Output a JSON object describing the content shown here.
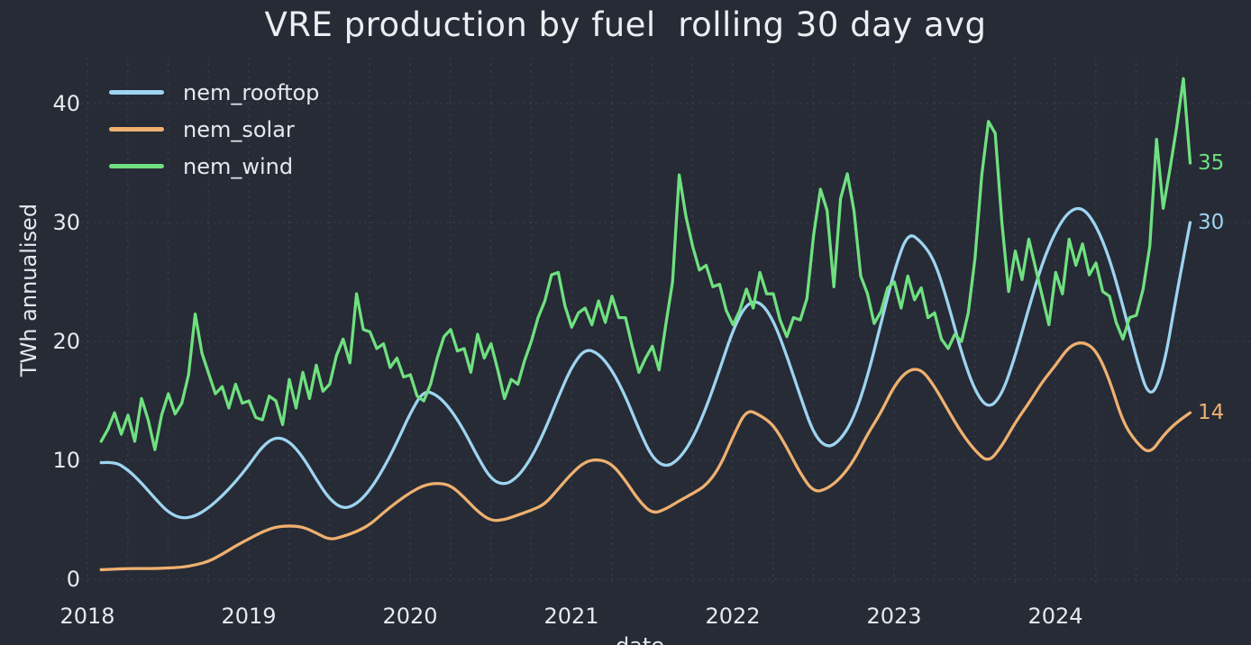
{
  "title": "VRE production by fuel  rolling 30 day avg",
  "colors": {
    "background": "#262b36",
    "grid": "#4b5160",
    "text": "#e6e9ed",
    "nem_rooftop": "#9ed4f0",
    "nem_solar": "#efb06f",
    "nem_wind": "#6fe07f"
  },
  "chart_data": {
    "type": "line",
    "title": "VRE production by fuel  rolling 30 day avg",
    "xlabel": "date",
    "ylabel": "TWh annualised",
    "x_ticks": [
      "2018",
      "2019",
      "2020",
      "2021",
      "2022",
      "2023",
      "2024"
    ],
    "y_ticks": [
      "0",
      "10",
      "20",
      "30",
      "40"
    ],
    "y_tick_values": [
      0,
      10,
      20,
      30,
      40
    ],
    "xlim": [
      2018.0,
      2024.85
    ],
    "ylim": [
      0,
      44
    ],
    "grid": "dotted; vertical quarterly, horizontal every 10",
    "legend_position": "top-left",
    "units": "TWh annualised, rolling 30 day average",
    "end_labels": [
      {
        "series": "nem_wind",
        "label": "35",
        "value": 35
      },
      {
        "series": "nem_rooftop",
        "label": "30",
        "value": 30
      },
      {
        "series": "nem_solar",
        "label": "14",
        "value": 14
      }
    ],
    "series": [
      {
        "name": "nem_rooftop",
        "color": "#9ed4f0",
        "start_year": 2018.085,
        "step_months": 1,
        "values": [
          9.8,
          9.9,
          9.2,
          8.1,
          6.8,
          5.6,
          5.1,
          5.3,
          6.0,
          7.0,
          8.2,
          9.6,
          11.2,
          12.0,
          11.6,
          10.3,
          8.4,
          6.7,
          5.9,
          6.3,
          7.5,
          9.3,
          11.5,
          14.0,
          15.9,
          15.5,
          14.3,
          12.5,
          10.3,
          8.4,
          7.9,
          8.6,
          10.2,
          12.5,
          15.3,
          17.9,
          19.4,
          19.0,
          17.6,
          15.4,
          12.6,
          10.2,
          9.4,
          10.1,
          11.8,
          14.4,
          17.6,
          21.0,
          23.2,
          23.4,
          21.8,
          18.8,
          15.4,
          12.2,
          11.0,
          11.7,
          13.6,
          17.0,
          21.5,
          26.0,
          29.2,
          28.4,
          26.8,
          23.2,
          19.0,
          15.8,
          14.3,
          15.5,
          18.8,
          22.8,
          26.6,
          29.3,
          31.0,
          31.3,
          29.8,
          27.0,
          23.0,
          18.6,
          15.0,
          17.5,
          24.0,
          30.0
        ]
      },
      {
        "name": "nem_solar",
        "color": "#efb06f",
        "start_year": 2018.085,
        "step_months": 1,
        "values": [
          0.8,
          0.85,
          0.9,
          0.9,
          0.9,
          0.95,
          1.0,
          1.2,
          1.5,
          2.1,
          2.8,
          3.4,
          4.0,
          4.4,
          4.5,
          4.4,
          3.9,
          3.3,
          3.6,
          4.0,
          4.6,
          5.6,
          6.5,
          7.3,
          7.9,
          8.1,
          7.9,
          6.9,
          5.7,
          4.9,
          5.0,
          5.4,
          5.8,
          6.3,
          7.6,
          8.9,
          9.9,
          10.1,
          9.7,
          8.3,
          6.6,
          5.5,
          5.9,
          6.6,
          7.2,
          7.9,
          9.4,
          12.0,
          14.3,
          13.8,
          13.0,
          11.1,
          8.9,
          7.3,
          7.6,
          8.5,
          10.0,
          12.2,
          14.0,
          16.3,
          17.6,
          17.7,
          16.2,
          14.2,
          12.3,
          10.8,
          9.8,
          11.2,
          13.2,
          14.8,
          16.6,
          18.0,
          19.6,
          20.0,
          19.3,
          16.8,
          13.2,
          11.5,
          10.5,
          12.1,
          13.2,
          14.0
        ]
      },
      {
        "name": "nem_wind",
        "color": "#6fe07f",
        "start_year": 2018.085,
        "step_months": 0.5,
        "values": [
          11.6,
          12.6,
          14.0,
          12.2,
          13.8,
          11.6,
          15.2,
          13.4,
          10.9,
          13.8,
          15.6,
          13.9,
          14.8,
          17.2,
          22.3,
          19.0,
          17.3,
          15.6,
          16.2,
          14.4,
          16.4,
          14.8,
          15.0,
          13.6,
          13.4,
          15.4,
          15.0,
          13.0,
          16.8,
          14.4,
          17.4,
          15.2,
          18.0,
          15.8,
          16.4,
          18.8,
          20.2,
          18.2,
          24.0,
          21.0,
          20.8,
          19.4,
          19.8,
          17.8,
          18.6,
          17.0,
          17.2,
          15.4,
          15.0,
          16.4,
          18.6,
          20.4,
          21.0,
          19.2,
          19.4,
          17.4,
          20.6,
          18.6,
          19.8,
          17.6,
          15.2,
          16.8,
          16.4,
          18.4,
          20.0,
          22.0,
          23.4,
          25.6,
          25.8,
          23.0,
          21.2,
          22.4,
          22.8,
          21.4,
          23.4,
          21.6,
          23.8,
          22.0,
          22.0,
          19.6,
          17.4,
          18.6,
          19.6,
          17.6,
          21.4,
          25.0,
          34.0,
          30.5,
          28.0,
          26.0,
          26.4,
          24.6,
          24.8,
          22.6,
          21.4,
          22.6,
          24.4,
          22.8,
          25.8,
          24.0,
          24.0,
          21.8,
          20.4,
          22.0,
          21.8,
          23.6,
          29.0,
          32.8,
          31.0,
          24.6,
          32.0,
          34.1,
          31.0,
          25.5,
          24.0,
          21.5,
          22.5,
          24.5,
          25.0,
          22.8,
          25.5,
          23.5,
          24.5,
          22.0,
          22.4,
          20.2,
          19.4,
          20.6,
          20.0,
          22.4,
          27.0,
          34.0,
          38.5,
          37.5,
          30.0,
          24.2,
          27.6,
          25.2,
          28.6,
          26.2,
          23.8,
          21.4,
          25.8,
          24.0,
          28.6,
          26.4,
          28.2,
          25.6,
          26.6,
          24.2,
          23.8,
          21.6,
          20.2,
          22.0,
          22.2,
          24.4,
          28.0,
          37.0,
          31.2,
          34.5,
          38.0,
          42.1,
          35.0
        ]
      }
    ]
  }
}
